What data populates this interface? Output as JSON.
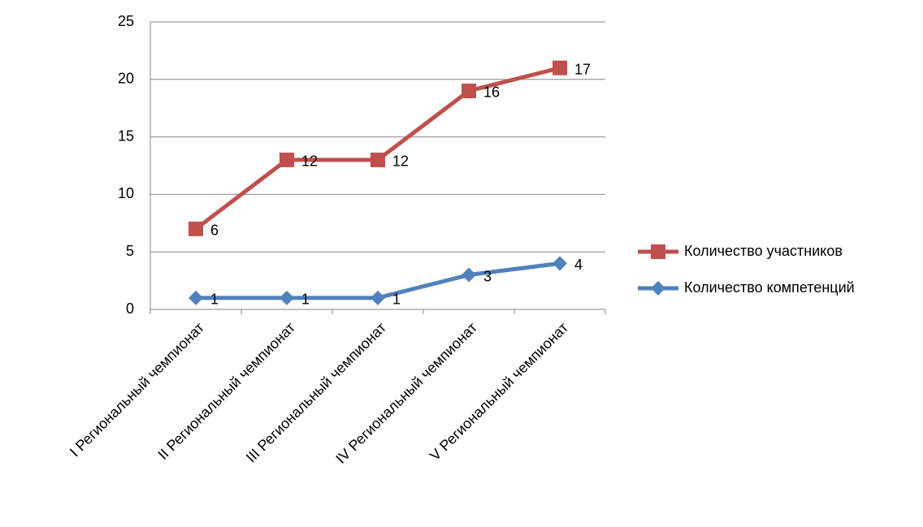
{
  "chart_data": {
    "type": "line",
    "stacked": true,
    "categories": [
      "I Региональный чемпионат",
      "II Региональный чемпионат",
      "III Региональный чемпионат",
      "IV Региональный чемпионат",
      "V Региональный чемпионат"
    ],
    "series": [
      {
        "name": "Количество компетенций",
        "color": "#4f81bd",
        "marker": "diamond",
        "values": [
          1,
          1,
          1,
          3,
          4
        ]
      },
      {
        "name": "Количество участников",
        "color": "#c0504d",
        "marker": "square",
        "values": [
          6,
          12,
          12,
          16,
          17
        ]
      }
    ],
    "ylim": [
      0,
      25
    ],
    "yticks": [
      0,
      5,
      10,
      15,
      20,
      25
    ],
    "grid": true,
    "legend": "right"
  }
}
